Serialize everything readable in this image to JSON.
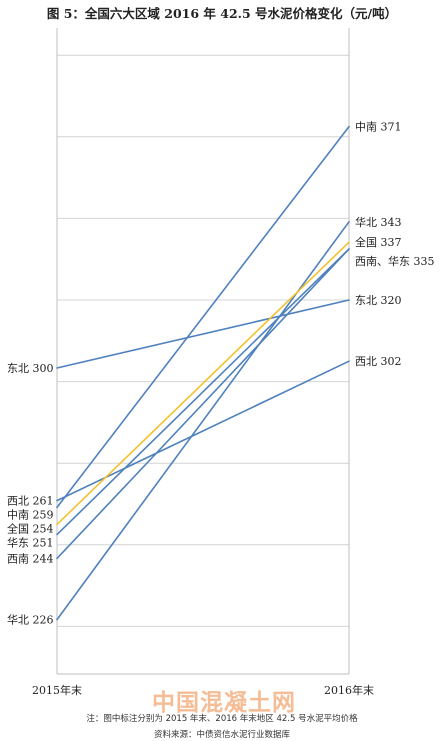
{
  "chart_data": {
    "type": "line",
    "title": "图 5：全国六大区域 2016 年 42.5 号水泥价格变化（元/吨）",
    "categories": [
      "2015年末",
      "2016年末"
    ],
    "ylim": [
      210,
      400
    ],
    "grid": true,
    "series": [
      {
        "name": "中南",
        "values": [
          259,
          371
        ],
        "color": "#4f81bd"
      },
      {
        "name": "华北",
        "values": [
          226,
          343
        ],
        "color": "#4f81bd"
      },
      {
        "name": "全国",
        "values": [
          254,
          337
        ],
        "color": "#f2c12e"
      },
      {
        "name": "西南",
        "values": [
          244,
          335
        ],
        "color": "#4f81bd"
      },
      {
        "name": "华东",
        "values": [
          251,
          335
        ],
        "color": "#4f81bd"
      },
      {
        "name": "东北",
        "values": [
          300,
          320
        ],
        "color": "#4f81bd"
      },
      {
        "name": "西北",
        "values": [
          261,
          302
        ],
        "color": "#4f81bd"
      }
    ],
    "left_labels": [
      {
        "text": "东北 300",
        "value": 300
      },
      {
        "text": "西北 261",
        "value": 261
      },
      {
        "text": "中南 259",
        "value": 259
      },
      {
        "text": "全国 254",
        "value": 254
      },
      {
        "text": "华东 251",
        "value": 251
      },
      {
        "text": "西南 244",
        "value": 244
      },
      {
        "text": "华北 226",
        "value": 226
      }
    ],
    "right_labels": [
      {
        "text": "中南 371",
        "value": 371
      },
      {
        "text": "华北 343",
        "value": 343
      },
      {
        "text": "全国 337",
        "value": 337
      },
      {
        "text": "西南、华东 335",
        "value": 335
      },
      {
        "text": "东北 320",
        "value": 320
      },
      {
        "text": "西北 302",
        "value": 302
      }
    ]
  },
  "footnote": "注：图中标注分别为 2015 年末、2016 年末地区 42.5 号水泥平均价格",
  "source": "资料来源：中债资信水泥行业数据库",
  "watermark": "中国混凝土网"
}
